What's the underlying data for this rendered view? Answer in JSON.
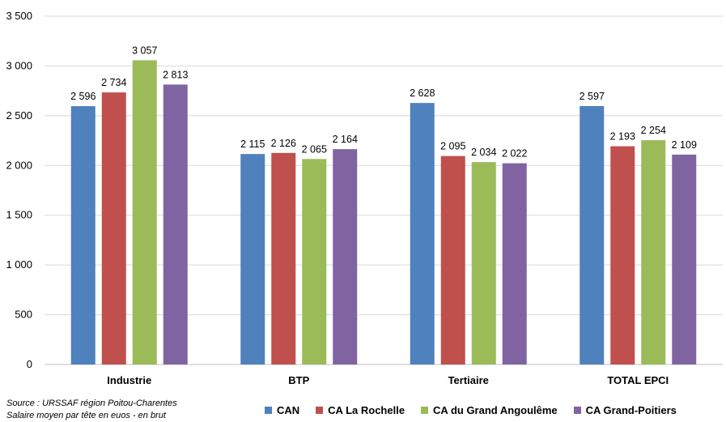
{
  "chart_data": {
    "type": "bar",
    "categories": [
      "Industrie",
      "BTP",
      "Tertiaire",
      "TOTAL EPCI"
    ],
    "series": [
      {
        "name": "CAN",
        "color": "#4f81bd",
        "values": [
          2596,
          2115,
          2628,
          2597
        ],
        "labels": [
          "2 596",
          "2 115",
          "2 628",
          "2 597"
        ]
      },
      {
        "name": "CA La Rochelle",
        "color": "#c0504d",
        "values": [
          2734,
          2126,
          2095,
          2193
        ],
        "labels": [
          "2 734",
          "2 126",
          "2 095",
          "2 193"
        ]
      },
      {
        "name": "CA du Grand Angoulême",
        "color": "#9bbb59",
        "values": [
          3057,
          2065,
          2034,
          2254
        ],
        "labels": [
          "3 057",
          "2 065",
          "2 034",
          "2 254"
        ]
      },
      {
        "name": "CA  Grand-Poitiers",
        "color": "#8064a2",
        "values": [
          2813,
          2164,
          2022,
          2109
        ],
        "labels": [
          "2 813",
          "2 164",
          "2 022",
          "2 109"
        ]
      }
    ],
    "ylim": [
      0,
      3500
    ],
    "yticks": [
      0,
      500,
      1000,
      1500,
      2000,
      2500,
      3000,
      3500
    ],
    "ytick_labels": [
      "0",
      "500",
      "1 000",
      "1 500",
      "2 000",
      "2 500",
      "3 000",
      "3 500"
    ],
    "grid": true,
    "legend_position": "bottom"
  },
  "source_note": {
    "line1": "Source : URSSAF région Poitou-Charentes",
    "line2": "Salaire moyen par tête  en euos - en brut"
  }
}
